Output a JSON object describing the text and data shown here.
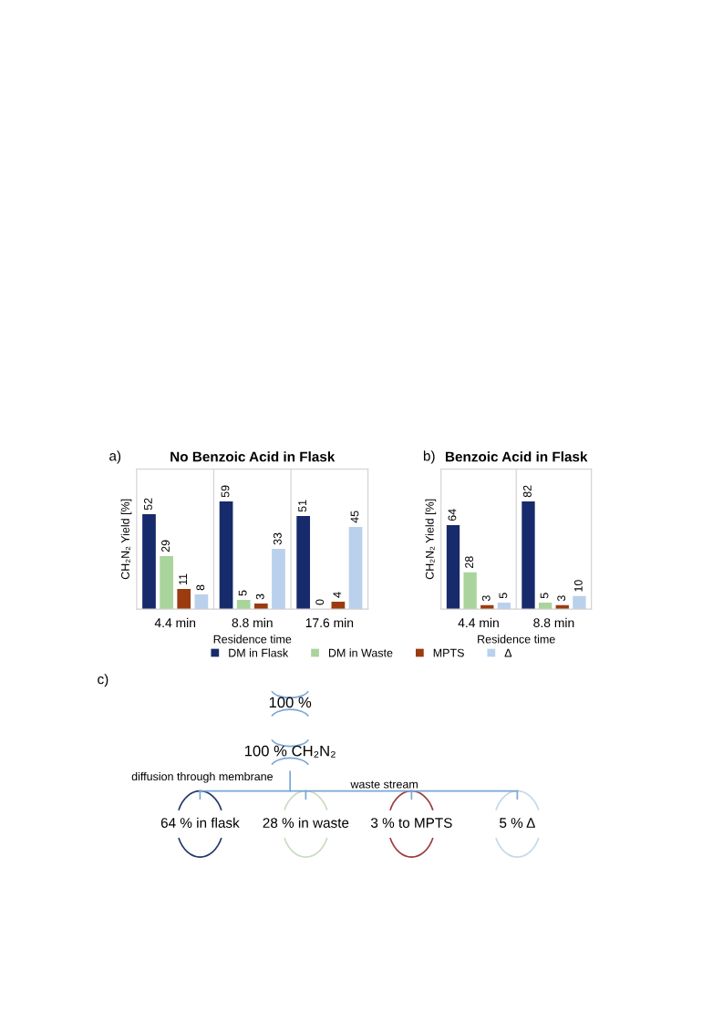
{
  "chart_data": [
    {
      "type": "bar",
      "title": "No Benzoic Acid in Flask",
      "xlabel": "Residence time",
      "ylabel": "CH₂N₂ Yield [%]",
      "categories": [
        "4.4 min",
        "8.8 min",
        "17.6 min"
      ],
      "series": [
        {
          "name": "DM in Flask",
          "color": "#172a6b",
          "values": [
            52,
            59,
            51
          ]
        },
        {
          "name": "DM in Waste",
          "color": "#a9d49c",
          "values": [
            29,
            5,
            0
          ]
        },
        {
          "name": "MPTS",
          "color": "#9a3b10",
          "values": [
            11,
            3,
            4
          ]
        },
        {
          "name": "Δ",
          "color": "#b9d1ec",
          "values": [
            8,
            33,
            45
          ]
        }
      ],
      "data_labels": true,
      "tick_labels": "x",
      "legend": "bottom",
      "annotations": [
        "a)"
      ]
    },
    {
      "type": "bar",
      "title": "Benzoic Acid in Flask",
      "xlabel": "Residence time",
      "ylabel": "CH₂N₂ Yield [%]",
      "categories": [
        "4.4 min",
        "8.8 min"
      ],
      "series": [
        {
          "color": "#172a6b",
          "values": [
            64,
            82
          ]
        },
        {
          "color": "#a9d49c",
          "values": [
            28,
            5
          ]
        },
        {
          "color": "#9a3b10",
          "values": [
            3,
            3
          ]
        },
        {
          "color": "#b9d1ec",
          "values": [
            5,
            10
          ]
        }
      ],
      "data_labels": true,
      "tick_labels": "x",
      "annotations": [
        "b)"
      ]
    },
    {
      "type": "other",
      "categories": [
        "64 % in flask",
        "28 % in waste",
        "3 % to MPTS",
        "5 % Δ"
      ],
      "colors": [
        "#1f3a68",
        "#c9dcc0",
        "#9a3b3b",
        "#c5d8e6"
      ],
      "annotations": [
        "c)",
        "100 %",
        "100 % CH₂N₂",
        "diffusion through membrane",
        "waste stream"
      ]
    }
  ]
}
